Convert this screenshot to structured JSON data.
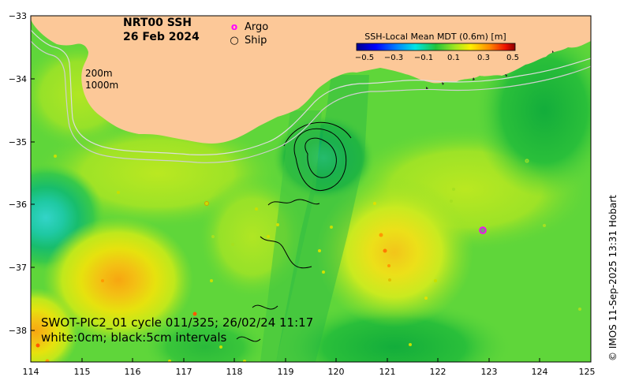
{
  "title": {
    "line1": "NRT00 SSH",
    "line2": "26 Feb 2024"
  },
  "legend": {
    "argo_label": "Argo",
    "ship_label": "Ship",
    "argo_symbol": "o",
    "ship_symbol": "○",
    "argo_color": "#ff00ff"
  },
  "colorbar": {
    "title": "SSH-Local Mean MDT (0.6m) [m]",
    "ticks": [
      "−0.5",
      "−0.3",
      "−0.1",
      "0.1",
      "0.3",
      "0.5"
    ]
  },
  "depth_labels": {
    "d200": "200m",
    "d1000": "1000m"
  },
  "caption": {
    "line1": "SWOT-PIC2_01 cycle 011/325; 26/02/24 11:17",
    "line2": "white:0cm; black:5cm intervals"
  },
  "credit": "© IMOS 11-Sep-2025 13:31 Hobart",
  "axes": {
    "x_ticks": [
      "114",
      "115",
      "116",
      "117",
      "118",
      "119",
      "120",
      "121",
      "122",
      "123",
      "124",
      "125"
    ],
    "y_ticks": [
      "−33",
      "−34",
      "−35",
      "−36",
      "−37",
      "−38"
    ],
    "lon_range": [
      114,
      125
    ],
    "lat_range": [
      -38.5,
      -33
    ]
  },
  "colors": {
    "land": "#fcc898",
    "ocean_base": "#5fd63a",
    "depth_contour": "#d9d9d9"
  },
  "eddies": [
    {
      "type": "low",
      "lon": 114.3,
      "lat": -36.3,
      "color": "#33d4c8"
    },
    {
      "type": "low",
      "lon": 119.7,
      "lat": -35.3,
      "color": "#23be8e"
    },
    {
      "type": "high",
      "lon": 115.8,
      "lat": -37.2,
      "color": "#f7a611"
    },
    {
      "type": "high",
      "lon": 121.3,
      "lat": -36.9,
      "color": "#f2c51a"
    },
    {
      "type": "high",
      "lon": 114.1,
      "lat": -38.3,
      "color": "#f3a110"
    }
  ],
  "argo_floats": [
    {
      "lon": 122.9,
      "lat": -36.45
    }
  ]
}
